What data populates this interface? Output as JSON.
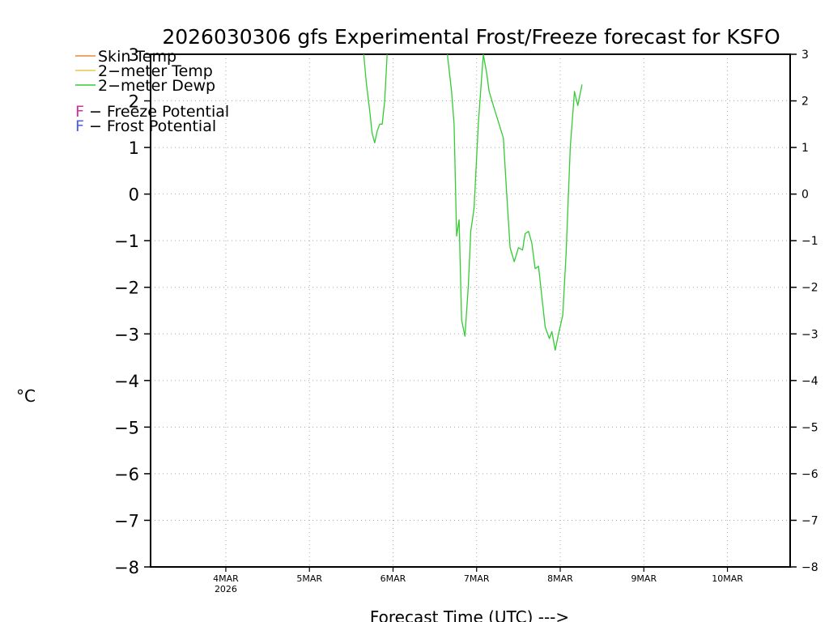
{
  "chart_data": {
    "type": "line",
    "title": "2026030306 gfs Experimental Frost/Freeze forecast for KSFO",
    "xlabel": "Forecast Time (UTC) --->",
    "ylabel": "°C",
    "ylim": [
      -8,
      3
    ],
    "xlim_days": [
      3.1,
      10.75
    ],
    "grid": true,
    "y_ticks": [
      -8,
      -7,
      -6,
      -5,
      -4,
      -3,
      -2,
      -1,
      0,
      1,
      2,
      3
    ],
    "y_tick_labels": [
      "−8",
      "−7",
      "−6",
      "−5",
      "−4",
      "−3",
      "−2",
      "−1",
      "0",
      "1",
      "2",
      "3"
    ],
    "x_ticks": [
      {
        "day": 4,
        "label": "4MAR",
        "sublabel": "2026"
      },
      {
        "day": 5,
        "label": "5MAR",
        "sublabel": ""
      },
      {
        "day": 6,
        "label": "6MAR",
        "sublabel": ""
      },
      {
        "day": 7,
        "label": "7MAR",
        "sublabel": ""
      },
      {
        "day": 8,
        "label": "8MAR",
        "sublabel": ""
      },
      {
        "day": 9,
        "label": "9MAR",
        "sublabel": ""
      },
      {
        "day": 10,
        "label": "10MAR",
        "sublabel": ""
      }
    ],
    "legend": [
      {
        "name": "Skin Temp",
        "color": "#e8893a"
      },
      {
        "name": "2−meter Temp",
        "color": "#e6c84a"
      },
      {
        "name": "2−meter Dewp",
        "color": "#33cc33"
      }
    ],
    "annotations": [
      {
        "letter": "F",
        "text": " − Freeze Potential",
        "color": "#cc3399"
      },
      {
        "letter": "F",
        "text": " − Frost Potential",
        "color": "#4a5ee6"
      }
    ],
    "legend_position": "top-left",
    "series": [
      {
        "name": "2−meter Dewp",
        "color": "#33cc33",
        "segments": [
          [
            [
              5.65,
              3.0
            ],
            [
              5.68,
              2.4
            ],
            [
              5.72,
              1.8
            ],
            [
              5.75,
              1.3
            ],
            [
              5.78,
              1.1
            ],
            [
              5.81,
              1.35
            ],
            [
              5.84,
              1.5
            ],
            [
              5.87,
              1.5
            ],
            [
              5.9,
              2.0
            ],
            [
              5.93,
              3.0
            ]
          ],
          [
            [
              6.65,
              3.0
            ],
            [
              6.7,
              2.2
            ],
            [
              6.73,
              1.5
            ],
            [
              6.76,
              -0.9
            ],
            [
              6.79,
              -0.55
            ],
            [
              6.82,
              -2.7
            ],
            [
              6.86,
              -3.05
            ],
            [
              6.9,
              -2.0
            ],
            [
              6.93,
              -0.8
            ],
            [
              6.97,
              -0.3
            ],
            [
              7.02,
              1.5
            ],
            [
              7.08,
              3.0
            ],
            [
              7.12,
              2.6
            ],
            [
              7.15,
              2.2
            ],
            [
              7.2,
              1.9
            ],
            [
              7.26,
              1.55
            ],
            [
              7.32,
              1.2
            ],
            [
              7.36,
              0.0
            ],
            [
              7.4,
              -1.15
            ],
            [
              7.45,
              -1.45
            ],
            [
              7.5,
              -1.15
            ],
            [
              7.55,
              -1.2
            ],
            [
              7.58,
              -0.85
            ],
            [
              7.62,
              -0.8
            ],
            [
              7.66,
              -1.05
            ],
            [
              7.7,
              -1.6
            ],
            [
              7.74,
              -1.55
            ],
            [
              7.78,
              -2.2
            ],
            [
              7.82,
              -2.85
            ],
            [
              7.87,
              -3.1
            ],
            [
              7.9,
              -2.95
            ],
            [
              7.94,
              -3.35
            ],
            [
              7.98,
              -3.0
            ],
            [
              8.03,
              -2.6
            ],
            [
              8.07,
              -1.3
            ],
            [
              8.12,
              1.0
            ],
            [
              8.17,
              2.2
            ],
            [
              8.21,
              1.9
            ],
            [
              8.26,
              2.35
            ]
          ]
        ]
      }
    ]
  }
}
